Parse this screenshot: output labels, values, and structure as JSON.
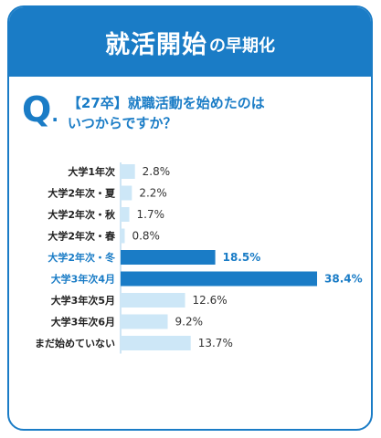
{
  "header": {
    "title_main": "就活開始",
    "title_sub": "の早期化"
  },
  "question": {
    "mark": "Q",
    "line1": "【27卒】就職活動を始めたのは",
    "line2": "いつからですか？"
  },
  "colors": {
    "brand": "#1a7cc6",
    "highlight": "#1a7cc6",
    "normal_bar": "#cde7f7",
    "label": "#222222"
  },
  "chart_data": {
    "type": "bar",
    "orientation": "horizontal",
    "categories": [
      "大学1年次",
      "大学2年次・夏",
      "大学2年次・秋",
      "大学2年次・春",
      "大学2年次・冬",
      "大学3年次4月",
      "大学3年次5月",
      "大学3年次6月",
      "まだ始めていない"
    ],
    "values": [
      2.8,
      2.2,
      1.7,
      0.8,
      18.5,
      38.4,
      12.6,
      9.2,
      13.7
    ],
    "value_labels": [
      "2.8%",
      "2.2%",
      "1.7%",
      "0.8%",
      "18.5%",
      "38.4%",
      "12.6%",
      "9.2%",
      "13.7%"
    ],
    "highlighted": [
      false,
      false,
      false,
      false,
      true,
      true,
      false,
      false,
      false
    ],
    "xlim": [
      0,
      40
    ],
    "grid": false,
    "legend": "none"
  }
}
